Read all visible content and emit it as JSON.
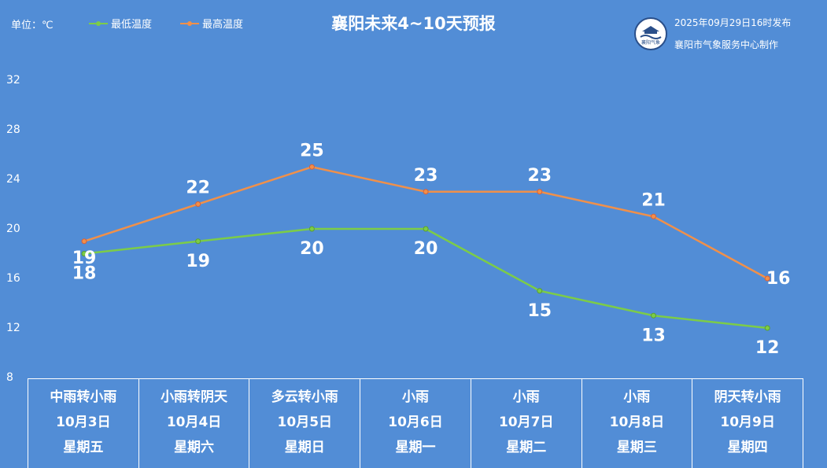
{
  "header": {
    "unit_label": "单位：℃",
    "title": "襄阳未来4~10天预报",
    "publish_time": "2025年09月29日16时发布",
    "publisher": "襄阳市气象服务中心制作",
    "logo_text": "襄阳气象"
  },
  "legend": [
    {
      "name": "最低温度",
      "color": "#7ccc48"
    },
    {
      "name": "最高温度",
      "color": "#f0904a"
    }
  ],
  "days": [
    {
      "weather": "中雨转小雨",
      "date": "10月3日",
      "weekday": "星期五"
    },
    {
      "weather": "小雨转阴天",
      "date": "10月4日",
      "weekday": "星期六"
    },
    {
      "weather": "多云转小雨",
      "date": "10月5日",
      "weekday": "星期日"
    },
    {
      "weather": "小雨",
      "date": "10月6日",
      "weekday": "星期一"
    },
    {
      "weather": "小雨",
      "date": "10月7日",
      "weekday": "星期二"
    },
    {
      "weather": "小雨",
      "date": "10月8日",
      "weekday": "星期三"
    },
    {
      "weather": "阴天转小雨",
      "date": "10月9日",
      "weekday": "星期四"
    }
  ],
  "chart_data": {
    "type": "line",
    "title": "襄阳未来4~10天预报",
    "ylabel": "单位：℃",
    "categories": [
      "10月3日",
      "10月4日",
      "10月5日",
      "10月6日",
      "10月7日",
      "10月8日",
      "10月9日"
    ],
    "y_ticks": [
      8,
      12,
      16,
      20,
      24,
      28,
      32
    ],
    "ylim": [
      8,
      32
    ],
    "grid": false,
    "legend_position": "top-left",
    "series": [
      {
        "name": "最低温度",
        "color": "#7ccc48",
        "values": [
          18,
          19,
          20,
          20,
          15,
          13,
          12
        ]
      },
      {
        "name": "最高温度",
        "color": "#f0904a",
        "values": [
          19,
          22,
          25,
          23,
          23,
          21,
          16
        ]
      }
    ]
  }
}
